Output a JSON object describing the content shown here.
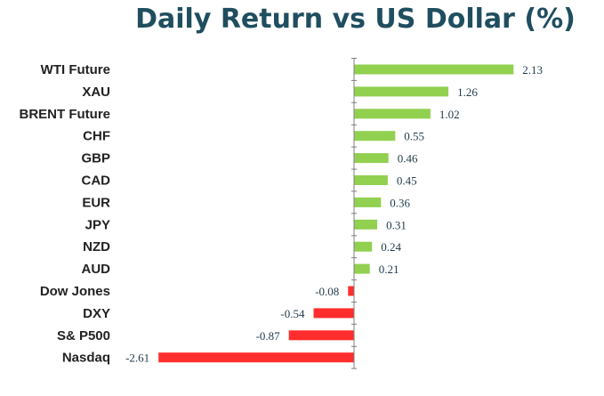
{
  "chart_data": {
    "type": "bar",
    "orientation": "horizontal",
    "title": "Daily Return vs US Dollar (%)",
    "xlabel": "",
    "ylabel": "",
    "categories": [
      "WTI Future",
      "XAU",
      "BRENT Future",
      "CHF",
      "GBP",
      "CAD",
      "EUR",
      "JPY",
      "NZD",
      "AUD",
      "Dow Jones",
      "DXY",
      "S& P500",
      "Nasdaq"
    ],
    "values": [
      2.13,
      1.26,
      1.02,
      0.55,
      0.46,
      0.45,
      0.36,
      0.31,
      0.24,
      0.21,
      -0.08,
      -0.54,
      -0.87,
      -2.61
    ],
    "value_labels": [
      "2.13",
      "1.26",
      "1.02",
      "0.55",
      "0.46",
      "0.45",
      "0.36",
      "0.31",
      "0.24",
      "0.21",
      "-0.08",
      "-0.54",
      "-0.87",
      "-2.61"
    ],
    "xlim": [
      -2.61,
      2.13
    ],
    "grid": false,
    "legend": "none",
    "colors": {
      "positive": "#92d050",
      "negative": "#ff2d2d",
      "axis": "#7f7f7f",
      "title": "#1f4e5f"
    }
  }
}
